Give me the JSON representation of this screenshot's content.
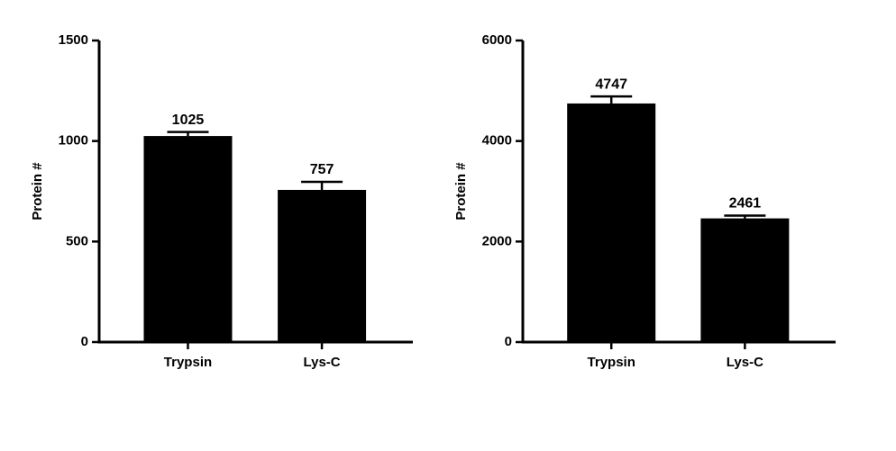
{
  "chart_data": [
    {
      "type": "bar",
      "ylabel": "Protein #",
      "categories": [
        "Trypsin",
        "Lys-C"
      ],
      "values": [
        1025,
        757
      ],
      "errors": [
        20,
        40
      ],
      "color": "#000000",
      "ylim": [
        0,
        1500
      ],
      "yticks": [
        0,
        500,
        1000,
        1500
      ]
    },
    {
      "type": "bar",
      "ylabel": "Protein #",
      "categories": [
        "Trypsin",
        "Lys-C"
      ],
      "values": [
        4747,
        2461
      ],
      "errors": [
        140,
        55
      ],
      "color": "#000000",
      "ylim": [
        0,
        6000
      ],
      "yticks": [
        0,
        2000,
        4000,
        6000
      ]
    }
  ]
}
